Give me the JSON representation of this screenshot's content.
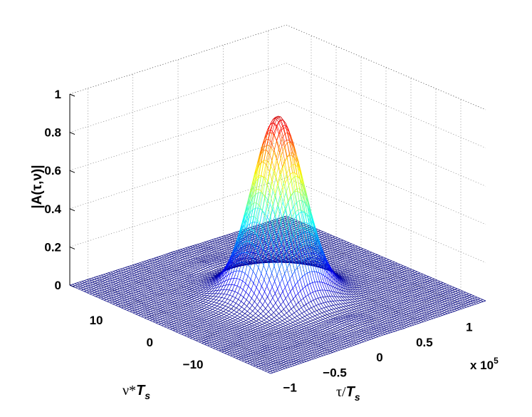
{
  "chart_data": {
    "type": "surface3d",
    "title": "",
    "xlabel": "τ/T_s",
    "ylabel": "ν*T_s",
    "zlabel": "|A(τ,ν)|",
    "x_multiplier": "x 10^5",
    "xlim": [
      -1.2,
      1.2
    ],
    "ylim": [
      -20,
      20
    ],
    "zlim": [
      0,
      1
    ],
    "x_ticks": [
      -1,
      -0.5,
      0,
      0.5,
      1
    ],
    "y_ticks": [
      -10,
      0,
      10
    ],
    "z_ticks": [
      0,
      0.2,
      0.4,
      0.6,
      0.8,
      1
    ],
    "peak": {
      "x": 0,
      "y": 0,
      "z": 0.93
    },
    "x_halfwidth_approx": 0.22,
    "y_halfwidth_approx": 3.5,
    "grid": true,
    "colormap": "jet",
    "mesh_style": "wireframe"
  },
  "labels": {
    "zlabel_text": "|A(τ,ν)|",
    "xlabel_base": "τ/",
    "xlabel_var": "T",
    "xlabel_sub": "s",
    "ylabel_base": "ν*",
    "ylabel_var": "T",
    "ylabel_sub": "s",
    "multiplier_base": "x 10",
    "multiplier_exp": "5"
  }
}
